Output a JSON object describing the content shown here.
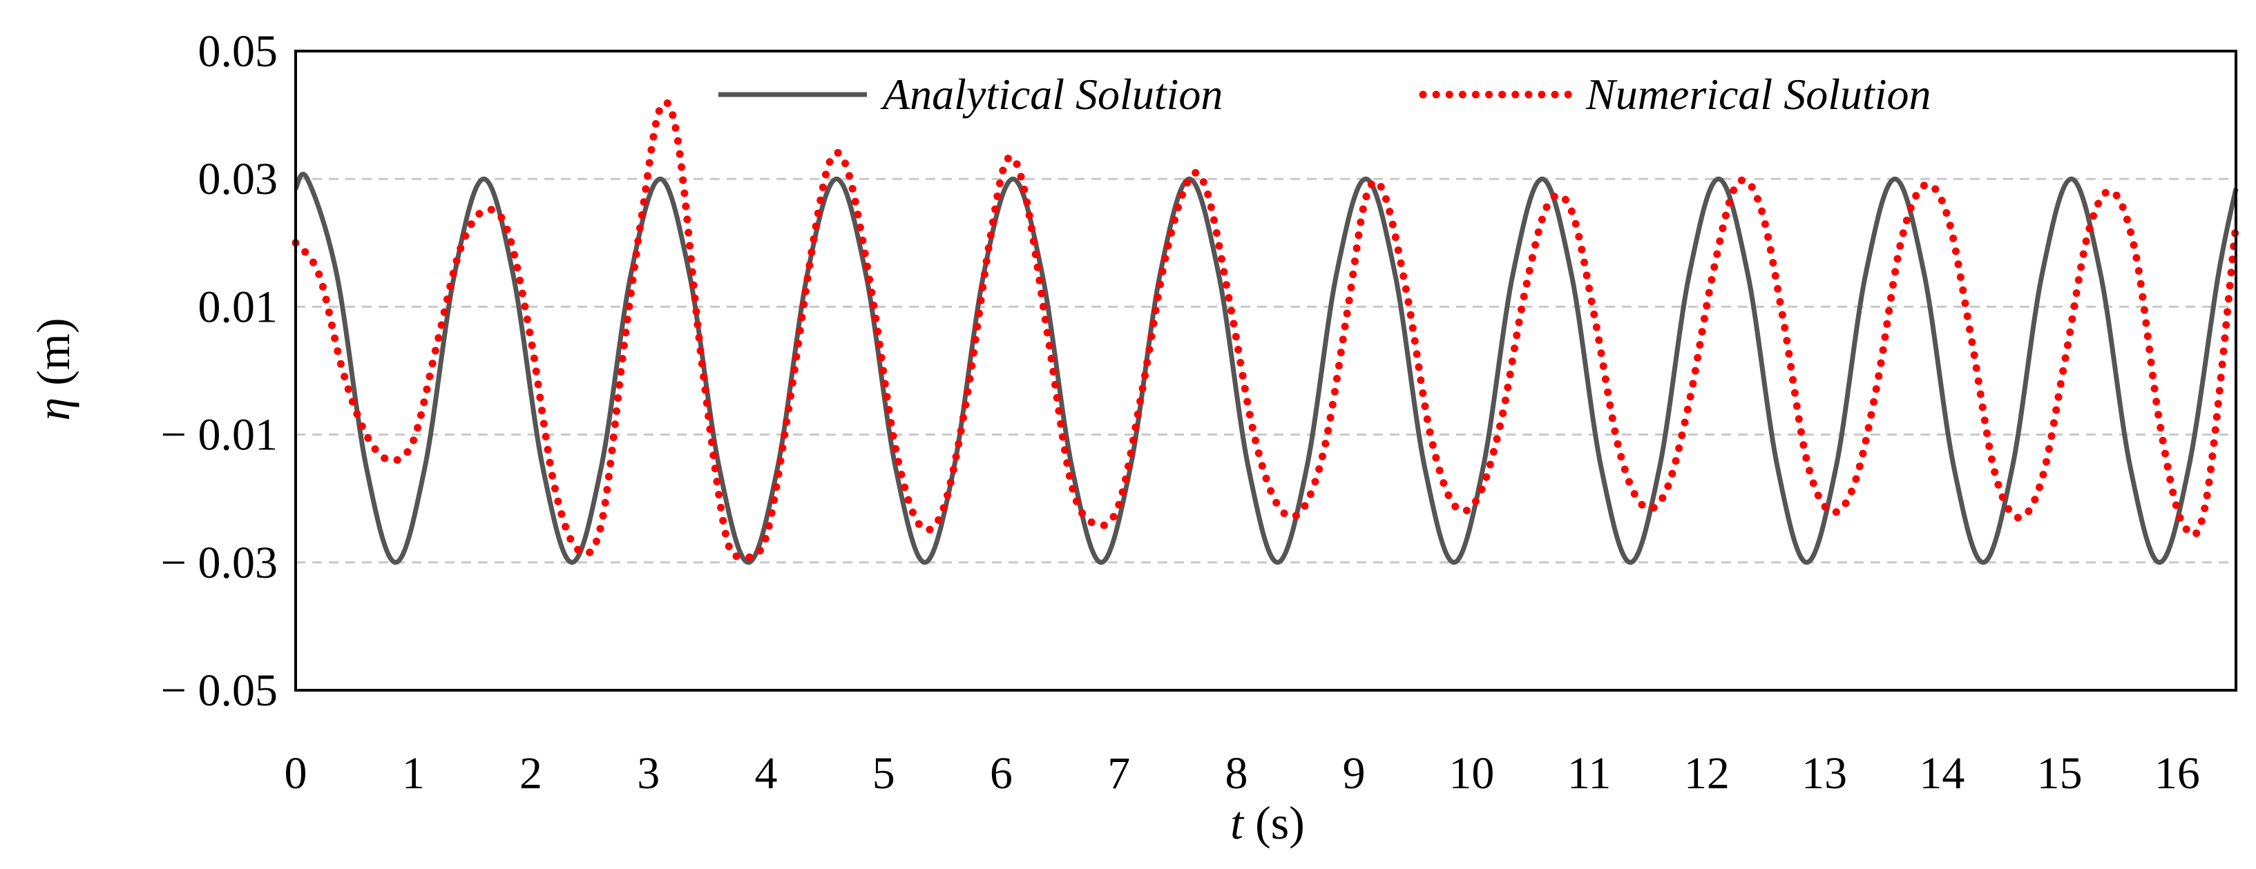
{
  "chart_data": {
    "type": "line",
    "xlabel_symbol": "t",
    "xlabel_unit": "(s)",
    "ylabel_symbol": "η",
    "ylabel_unit": "(m)",
    "xlim": [
      0,
      16.5
    ],
    "ylim": [
      -0.05,
      0.05
    ],
    "xticks": [
      0,
      1,
      2,
      3,
      4,
      5,
      6,
      7,
      8,
      9,
      10,
      11,
      12,
      13,
      14,
      15,
      16
    ],
    "xtick_labels": [
      "0",
      "1",
      "2",
      "3",
      "4",
      "5",
      "6",
      "7",
      "8",
      "9",
      "10",
      "11",
      "12",
      "13",
      "14",
      "15",
      "16"
    ],
    "yticks": [
      0.05,
      0.03,
      0.01,
      -0.01,
      -0.03,
      -0.05
    ],
    "ytick_labels": [
      "0.05",
      "0.03",
      "0.01",
      "− 0.01",
      "− 0.03",
      "− 0.05"
    ],
    "grid": "horizontal dashed at 0.03, 0.01, -0.01, -0.03",
    "legend_position": "top",
    "series": [
      {
        "name": "Analytical Solution",
        "style": "solid",
        "color": "#555555",
        "x": [
          0,
          0.1,
          0.35,
          0.6,
          0.85,
          1.1,
          1.35,
          1.6,
          1.85,
          2.1,
          2.35,
          2.6,
          2.85,
          3.1,
          3.35,
          3.6,
          3.85,
          4.1,
          4.35,
          4.6,
          4.85,
          5.1,
          5.35,
          5.6,
          5.85,
          6.1,
          6.35,
          6.6,
          6.85,
          7.1,
          7.35,
          7.6,
          7.85,
          8.1,
          8.35,
          8.6,
          8.85,
          9.1,
          9.35,
          9.6,
          9.85,
          10.1,
          10.35,
          10.6,
          10.85,
          11.1,
          11.35,
          11.6,
          11.85,
          12.1,
          12.35,
          12.6,
          12.85,
          13.1,
          13.35,
          13.6,
          13.85,
          14.1,
          14.35,
          14.6,
          14.85,
          15.1,
          15.35,
          15.6,
          15.85,
          16.1,
          16.35,
          16.5
        ],
        "y": [
          0.0285,
          0.03,
          0.015,
          -0.015,
          -0.03,
          -0.015,
          0.015,
          0.03,
          0.015,
          -0.015,
          -0.03,
          -0.015,
          0.015,
          0.03,
          0.015,
          -0.015,
          -0.03,
          -0.015,
          0.015,
          0.03,
          0.015,
          -0.015,
          -0.03,
          -0.015,
          0.015,
          0.03,
          0.015,
          -0.015,
          -0.03,
          -0.015,
          0.015,
          0.03,
          0.015,
          -0.015,
          -0.03,
          -0.015,
          0.015,
          0.03,
          0.015,
          -0.015,
          -0.03,
          -0.015,
          0.015,
          0.03,
          0.015,
          -0.015,
          -0.03,
          -0.015,
          0.015,
          0.03,
          0.015,
          -0.015,
          -0.03,
          -0.015,
          0.015,
          0.03,
          0.015,
          -0.015,
          -0.03,
          -0.015,
          0.015,
          0.03,
          0.015,
          -0.015,
          -0.03,
          -0.015,
          0.015,
          0.0285
        ]
      },
      {
        "name": "Numerical Solution",
        "style": "dotted",
        "color": "#ff0000",
        "x": [
          0,
          0.2,
          0.4,
          0.6,
          0.8,
          1.0,
          1.2,
          1.4,
          1.6,
          1.8,
          2.0,
          2.2,
          2.4,
          2.6,
          2.8,
          2.95,
          3.1,
          3.25,
          3.45,
          3.65,
          3.8,
          4.0,
          4.2,
          4.4,
          4.55,
          4.7,
          4.9,
          5.1,
          5.3,
          5.5,
          5.7,
          5.9,
          6.05,
          6.2,
          6.4,
          6.6,
          6.8,
          7.0,
          7.2,
          7.4,
          7.6,
          7.75,
          7.95,
          8.15,
          8.35,
          8.55,
          8.75,
          8.95,
          9.1,
          9.25,
          9.45,
          9.65,
          9.85,
          10.05,
          10.25,
          10.45,
          10.65,
          10.85,
          11.05,
          11.25,
          11.45,
          11.65,
          11.85,
          12.05,
          12.25,
          12.45,
          12.65,
          12.85,
          13.05,
          13.25,
          13.45,
          13.65,
          13.85,
          14.05,
          14.25,
          14.45,
          14.65,
          14.85,
          15.05,
          15.25,
          15.45,
          15.65,
          15.85,
          16.05,
          16.25,
          16.5
        ],
        "y": [
          0.02,
          0.015,
          0.0,
          -0.01,
          -0.014,
          -0.011,
          0.004,
          0.019,
          0.025,
          0.022,
          0.005,
          -0.018,
          -0.028,
          -0.024,
          0.005,
          0.025,
          0.041,
          0.036,
          0.002,
          -0.025,
          -0.029,
          -0.026,
          -0.005,
          0.02,
          0.033,
          0.031,
          0.012,
          -0.012,
          -0.024,
          -0.022,
          -0.005,
          0.02,
          0.033,
          0.028,
          0.005,
          -0.018,
          -0.024,
          -0.021,
          -0.003,
          0.018,
          0.03,
          0.028,
          0.01,
          -0.01,
          -0.021,
          -0.022,
          -0.012,
          0.01,
          0.027,
          0.028,
          0.012,
          -0.01,
          -0.021,
          -0.02,
          -0.008,
          0.012,
          0.026,
          0.025,
          0.008,
          -0.012,
          -0.021,
          -0.019,
          -0.005,
          0.015,
          0.029,
          0.026,
          0.008,
          -0.014,
          -0.022,
          -0.018,
          -0.002,
          0.02,
          0.029,
          0.024,
          0.005,
          -0.016,
          -0.023,
          -0.017,
          0.002,
          0.022,
          0.028,
          0.018,
          -0.008,
          -0.024,
          -0.02,
          0.023
        ]
      }
    ]
  }
}
